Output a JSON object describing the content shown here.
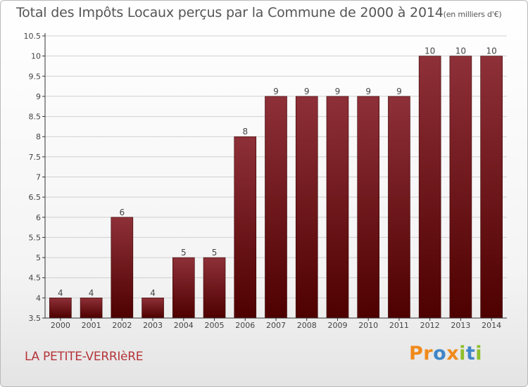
{
  "title": "Total des Impôts Locaux perçus par la Commune de 2000 à 2014",
  "unit_label": "(en milliers d'€)",
  "commune": "LA PETITE-VERRIèRE",
  "logo": {
    "text": "Proxiti",
    "letters": [
      {
        "ch": "P",
        "color": "#f08a1c"
      },
      {
        "ch": "r",
        "color": "#f08a1c"
      },
      {
        "ch": "o",
        "color": "#3f86c8"
      },
      {
        "ch": "x",
        "color": "#f08a1c"
      },
      {
        "ch": "i",
        "color": "#8fbf2c"
      },
      {
        "ch": "t",
        "color": "#3f86c8"
      },
      {
        "ch": "i",
        "color": "#8fbf2c"
      }
    ]
  },
  "colors": {
    "bar_top": "#8e3038",
    "bar_bottom": "#4e0000",
    "grid": "#d0d0d0",
    "axis": "#333333",
    "label": "#444444"
  },
  "chart_data": {
    "type": "bar",
    "categories": [
      "2000",
      "2001",
      "2002",
      "2003",
      "2004",
      "2005",
      "2006",
      "2007",
      "2008",
      "2009",
      "2010",
      "2011",
      "2012",
      "2013",
      "2014"
    ],
    "values": [
      4,
      4,
      6,
      4,
      5,
      5,
      8,
      9,
      9,
      9,
      9,
      9,
      10,
      10,
      10
    ],
    "value_labels": [
      "4",
      "4",
      "6",
      "4",
      "5",
      "5",
      "8",
      "9",
      "9",
      "9",
      "9",
      "9",
      "10",
      "10",
      "10"
    ],
    "ylim": [
      3.5,
      10.5
    ],
    "yticks": [
      3.5,
      4,
      4.5,
      5,
      5.5,
      6,
      6.5,
      7,
      7.5,
      8,
      8.5,
      9,
      9.5,
      10,
      10.5
    ],
    "ytick_labels": [
      "3.5",
      "4",
      "4.5",
      "5",
      "5.5",
      "6",
      "6.5",
      "7",
      "7.5",
      "8",
      "8.5",
      "9",
      "9.5",
      "10",
      "10.5"
    ],
    "grid": true,
    "legend": "none"
  }
}
